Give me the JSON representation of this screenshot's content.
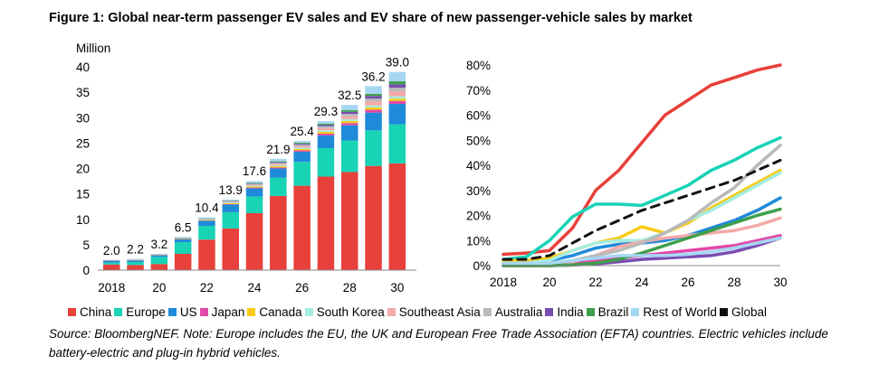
{
  "title": "Figure 1: Global near-term passenger EV sales and EV share of new passenger-vehicle sales by market",
  "source": "Source: BloombergNEF. Note: Europe includes the EU, the UK and European Free Trade Association (EFTA) countries. Electric vehicles include battery-electric and plug-in hybrid vehicles.",
  "legend": [
    {
      "name": "China",
      "color": "#e8403a",
      "style": "square"
    },
    {
      "name": "Europe",
      "color": "#19d3b5",
      "style": "square"
    },
    {
      "name": "US",
      "color": "#1f8ad9",
      "style": "square"
    },
    {
      "name": "Japan",
      "color": "#e14aa8",
      "style": "square"
    },
    {
      "name": "Canada",
      "color": "#f7cb16",
      "style": "square"
    },
    {
      "name": "South Korea",
      "color": "#a6ece1",
      "style": "square"
    },
    {
      "name": "Southeast Asia",
      "color": "#f4aaa8",
      "style": "square"
    },
    {
      "name": "Australia",
      "color": "#b9b9b9",
      "style": "square"
    },
    {
      "name": "India",
      "color": "#7a4cb2",
      "style": "square"
    },
    {
      "name": "Brazil",
      "color": "#3f9f4c",
      "style": "square"
    },
    {
      "name": "Rest of World",
      "color": "#a6d7f2",
      "style": "square"
    },
    {
      "name": "Global",
      "color": "#111111",
      "style": "square"
    }
  ],
  "chart_data": [
    {
      "type": "bar",
      "stacked": true,
      "ylabel": "Million",
      "ylim": [
        0,
        40
      ],
      "yticks": [
        0,
        5,
        10,
        15,
        20,
        25,
        30,
        35,
        40
      ],
      "categories": [
        "2018",
        "2019",
        "2020",
        "2021",
        "2022",
        "2023",
        "2024",
        "2025",
        "2026",
        "2027",
        "2028",
        "2029",
        "2030"
      ],
      "xtick_labels": [
        "2018",
        "20",
        "22",
        "24",
        "26",
        "28",
        "30"
      ],
      "totals": [
        2.0,
        2.2,
        3.2,
        6.5,
        10.4,
        13.9,
        17.6,
        21.9,
        25.4,
        29.3,
        32.5,
        36.2,
        39.0
      ],
      "total_labels": [
        "2.0",
        "2.2",
        "3.2",
        "6.5",
        "10.4",
        "13.9",
        "17.6",
        "21.9",
        "25.4",
        "29.3",
        "32.5",
        "36.2",
        "39.0"
      ],
      "series": [
        {
          "name": "China",
          "values": [
            1.1,
            1.0,
            1.2,
            3.2,
            6.0,
            8.2,
            11.2,
            14.6,
            16.6,
            18.4,
            19.3,
            20.5,
            21.0
          ]
        },
        {
          "name": "Europe",
          "values": [
            0.4,
            0.6,
            1.4,
            2.3,
            2.7,
            3.2,
            3.3,
            3.6,
            4.7,
            5.6,
            6.2,
            7.0,
            7.7
          ]
        },
        {
          "name": "US",
          "values": [
            0.35,
            0.3,
            0.3,
            0.6,
            1.0,
            1.5,
            1.6,
            1.8,
            2.0,
            2.5,
            3.0,
            3.5,
            4.0
          ]
        },
        {
          "name": "Japan",
          "values": [
            0.03,
            0.02,
            0.02,
            0.03,
            0.06,
            0.1,
            0.15,
            0.2,
            0.25,
            0.35,
            0.45,
            0.55,
            0.6
          ]
        },
        {
          "name": "Canada",
          "values": [
            0.04,
            0.05,
            0.05,
            0.08,
            0.1,
            0.15,
            0.2,
            0.25,
            0.3,
            0.35,
            0.4,
            0.45,
            0.45
          ]
        },
        {
          "name": "South Korea",
          "values": [
            0.03,
            0.04,
            0.05,
            0.1,
            0.15,
            0.15,
            0.2,
            0.2,
            0.25,
            0.3,
            0.35,
            0.4,
            0.45
          ]
        },
        {
          "name": "Southeast Asia",
          "values": [
            0.01,
            0.01,
            0.01,
            0.02,
            0.05,
            0.1,
            0.15,
            0.25,
            0.3,
            0.45,
            0.6,
            0.8,
            1.0
          ]
        },
        {
          "name": "Australia",
          "values": [
            0.01,
            0.01,
            0.01,
            0.02,
            0.04,
            0.1,
            0.15,
            0.2,
            0.25,
            0.35,
            0.45,
            0.55,
            0.7
          ]
        },
        {
          "name": "India",
          "values": [
            0.0,
            0.0,
            0.0,
            0.01,
            0.03,
            0.08,
            0.1,
            0.15,
            0.2,
            0.25,
            0.4,
            0.5,
            0.65
          ]
        },
        {
          "name": "Brazil",
          "values": [
            0.0,
            0.0,
            0.01,
            0.02,
            0.03,
            0.07,
            0.1,
            0.15,
            0.2,
            0.25,
            0.35,
            0.45,
            0.6
          ]
        },
        {
          "name": "Rest of World",
          "values": [
            0.03,
            0.17,
            0.15,
            0.12,
            0.24,
            0.23,
            0.35,
            0.5,
            0.35,
            0.5,
            1.0,
            1.5,
            1.85
          ]
        }
      ]
    },
    {
      "type": "line",
      "ylim": [
        0,
        80
      ],
      "yticks": [
        0,
        10,
        20,
        30,
        40,
        50,
        60,
        70,
        80
      ],
      "ytick_labels": [
        "0%",
        "10%",
        "20%",
        "30%",
        "40%",
        "50%",
        "60%",
        "70%",
        "80%"
      ],
      "x": [
        2018,
        2019,
        2020,
        2021,
        2022,
        2023,
        2024,
        2025,
        2026,
        2027,
        2028,
        2029,
        2030
      ],
      "xtick_labels": [
        "2018",
        "20",
        "22",
        "24",
        "26",
        "28",
        "30"
      ],
      "series": [
        {
          "name": "China",
          "values": [
            4.5,
            5,
            6,
            15,
            30,
            38,
            49,
            60,
            66,
            72,
            75,
            78,
            80
          ]
        },
        {
          "name": "Europe",
          "values": [
            2.5,
            3.5,
            10,
            19.5,
            24.5,
            24.5,
            24,
            28,
            32,
            38,
            42,
            47,
            51
          ]
        },
        {
          "name": "US",
          "values": [
            2,
            2,
            2,
            4,
            7,
            8.5,
            9,
            10,
            12,
            15,
            18,
            22,
            27
          ]
        },
        {
          "name": "Japan",
          "values": [
            1,
            1,
            1,
            1,
            2,
            3,
            4,
            5,
            6,
            7,
            8,
            10,
            12
          ]
        },
        {
          "name": "Canada",
          "values": [
            2,
            2,
            3,
            6,
            9,
            11,
            15.5,
            13,
            17,
            23,
            28,
            33,
            38
          ]
        },
        {
          "name": "South Korea",
          "values": [
            1,
            1,
            2,
            6,
            9,
            10,
            10,
            13,
            18,
            22,
            27,
            32,
            37
          ]
        },
        {
          "name": "Southeast Asia",
          "values": [
            0,
            0,
            0.3,
            1.5,
            4,
            7.5,
            9.5,
            11,
            12,
            13,
            14,
            16,
            19
          ]
        },
        {
          "name": "Australia",
          "values": [
            0.2,
            0.3,
            0.8,
            2,
            4,
            6,
            9,
            13,
            18,
            25,
            31,
            40,
            48
          ]
        },
        {
          "name": "India",
          "values": [
            0,
            0,
            0,
            0.2,
            0.7,
            1.5,
            2.5,
            3,
            3.5,
            4,
            5.5,
            8,
            11
          ]
        },
        {
          "name": "Brazil",
          "values": [
            0,
            0,
            0,
            0.3,
            1,
            2.5,
            5,
            8,
            11,
            14,
            17,
            20,
            22.5
          ]
        },
        {
          "name": "Rest of World",
          "values": [
            1,
            1,
            1,
            2,
            3,
            4,
            4,
            4,
            4.5,
            5.5,
            7,
            9,
            11
          ]
        },
        {
          "name": "Global",
          "values": [
            2.5,
            2.5,
            4,
            9,
            14,
            18,
            22,
            25,
            28,
            31,
            34,
            38,
            42
          ]
        }
      ]
    }
  ]
}
